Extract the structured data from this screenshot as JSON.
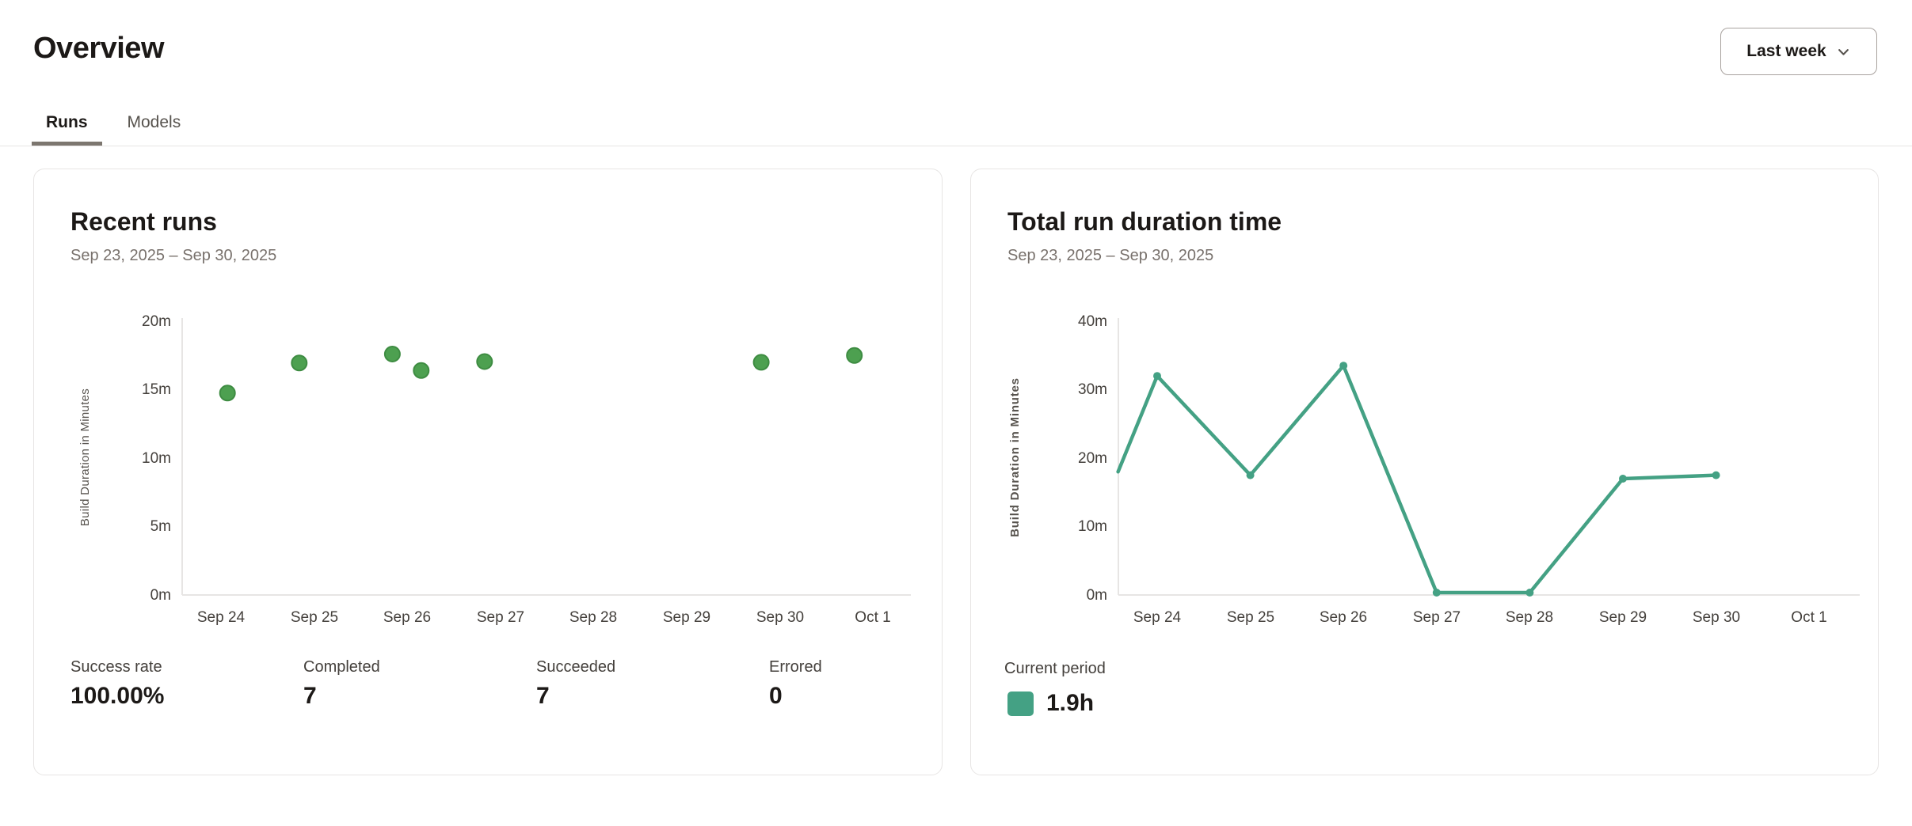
{
  "page": {
    "title": "Overview"
  },
  "period_selector": {
    "label": "Last week",
    "icon": "chevron-down"
  },
  "tabs": [
    {
      "label": "Runs",
      "active": true
    },
    {
      "label": "Models",
      "active": false
    }
  ],
  "cards": {
    "recent_runs": {
      "title": "Recent runs",
      "date_range": "Sep 23, 2025 – Sep 30, 2025",
      "stats": [
        {
          "label": "Success rate",
          "value": "100.00%"
        },
        {
          "label": "Completed",
          "value": "7"
        },
        {
          "label": "Succeeded",
          "value": "7"
        },
        {
          "label": "Errored",
          "value": "0"
        }
      ]
    },
    "total_run_duration": {
      "title": "Total run duration time",
      "date_range": "Sep 23, 2025 – Sep 30, 2025",
      "legend": {
        "label": "Current period",
        "value": "1.9h",
        "color": "#44a184"
      }
    }
  },
  "chart_data": [
    {
      "id": "recent-runs-scatter",
      "type": "scatter",
      "title": "Recent runs",
      "subtitle": "Sep 23, 2025 – Sep 30, 2025",
      "xlabel": "",
      "ylabel": "Build Duration in Minutes",
      "x_tick_labels": [
        "Sep 24",
        "Sep 25",
        "Sep 26",
        "Sep 27",
        "Sep 28",
        "Sep 29",
        "Sep 30",
        "Oct 1"
      ],
      "y_tick_labels": [
        "0m",
        "5m",
        "10m",
        "15m",
        "20m"
      ],
      "ylim": [
        0,
        20
      ],
      "grid": false,
      "point_color": "#4da050",
      "point_stroke": "#3e8c42",
      "points": [
        {
          "day_offset": 0.07,
          "minutes": 14.75
        },
        {
          "day_offset": 0.84,
          "minutes": 16.95
        },
        {
          "day_offset": 1.84,
          "minutes": 17.6
        },
        {
          "day_offset": 2.15,
          "minutes": 16.4
        },
        {
          "day_offset": 2.83,
          "minutes": 17.05
        },
        {
          "day_offset": 5.8,
          "minutes": 17.0
        },
        {
          "day_offset": 6.8,
          "minutes": 17.5
        }
      ]
    },
    {
      "id": "total-duration-line",
      "type": "line",
      "title": "Total run duration time",
      "subtitle": "Sep 23, 2025 – Sep 30, 2025",
      "xlabel": "",
      "ylabel": "Build Duration in Minutes",
      "x_tick_labels": [
        "Sep 24",
        "Sep 25",
        "Sep 26",
        "Sep 27",
        "Sep 28",
        "Sep 29",
        "Sep 30",
        "Oct 1"
      ],
      "y_tick_labels": [
        "0m",
        "10m",
        "20m",
        "30m",
        "40m"
      ],
      "ylim": [
        0,
        40
      ],
      "grid": false,
      "legend_label": "Current period",
      "legend_value": "1.9h",
      "line_color": "#44a184",
      "points": [
        {
          "day_offset": -0.42,
          "minutes": 18.0,
          "marker": false
        },
        {
          "day_offset": 0,
          "minutes": 32.0,
          "marker": true
        },
        {
          "day_offset": 1,
          "minutes": 17.5,
          "marker": true
        },
        {
          "day_offset": 2,
          "minutes": 33.5,
          "marker": true
        },
        {
          "day_offset": 3,
          "minutes": 0,
          "marker": true
        },
        {
          "day_offset": 4,
          "minutes": 0,
          "marker": true
        },
        {
          "day_offset": 5,
          "minutes": 17.0,
          "marker": true
        },
        {
          "day_offset": 6,
          "minutes": 17.5,
          "marker": true
        }
      ]
    }
  ]
}
